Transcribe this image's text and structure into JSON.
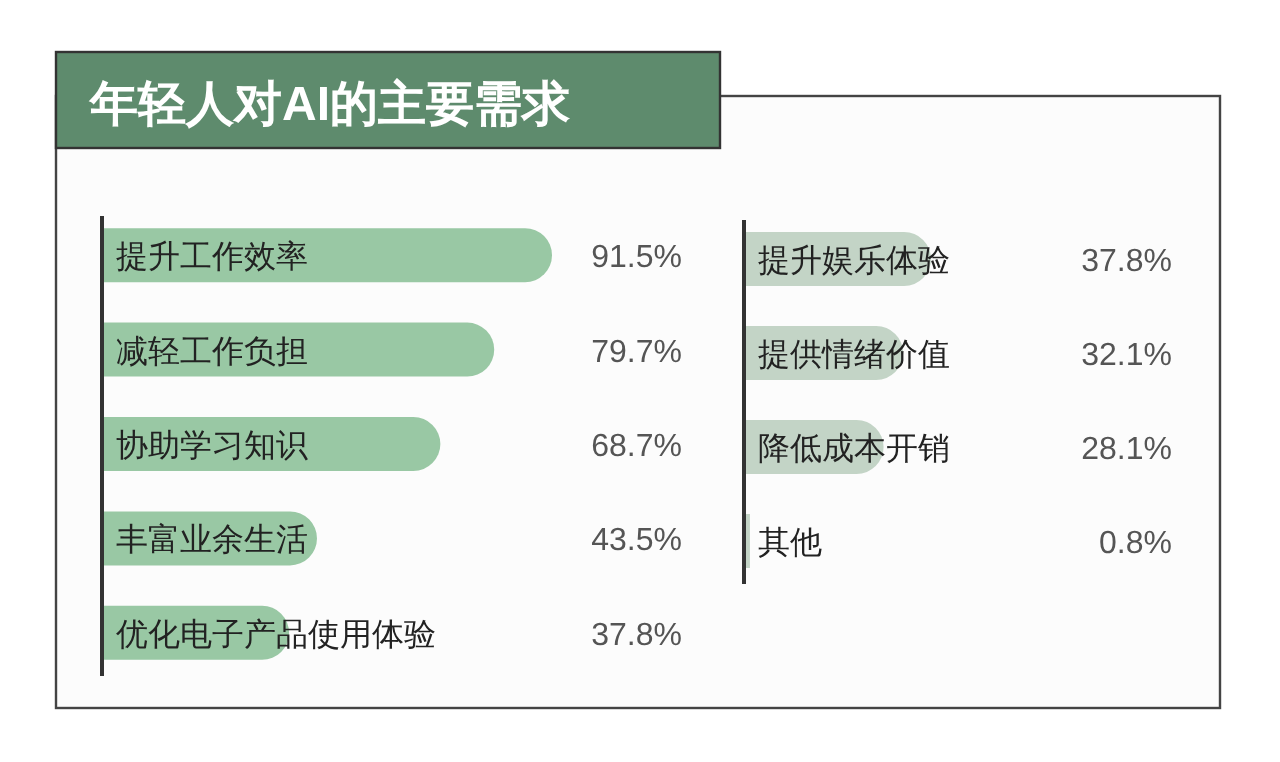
{
  "chart_data": [
    {
      "type": "bar",
      "orientation": "horizontal",
      "title": "年轻人对AI的主要需求",
      "categories": [
        "提升工作效率",
        "减轻工作负担",
        "协助学习知识",
        "丰富业余生活",
        "优化电子产品使用体验"
      ],
      "values": [
        91.5,
        79.7,
        68.7,
        43.5,
        37.8
      ],
      "value_labels": [
        "91.5%",
        "79.7%",
        "68.7%",
        "43.5%",
        "37.8%"
      ],
      "color": "#99c8a4"
    },
    {
      "type": "bar",
      "orientation": "horizontal",
      "categories": [
        "提升娱乐体验",
        "提供情绪价值",
        "降低成本开销",
        "其他"
      ],
      "values": [
        37.8,
        32.1,
        28.1,
        0.8
      ],
      "value_labels": [
        "37.8%",
        "32.1%",
        "28.1%",
        "0.8%"
      ],
      "color": "#c3d4c6"
    }
  ]
}
